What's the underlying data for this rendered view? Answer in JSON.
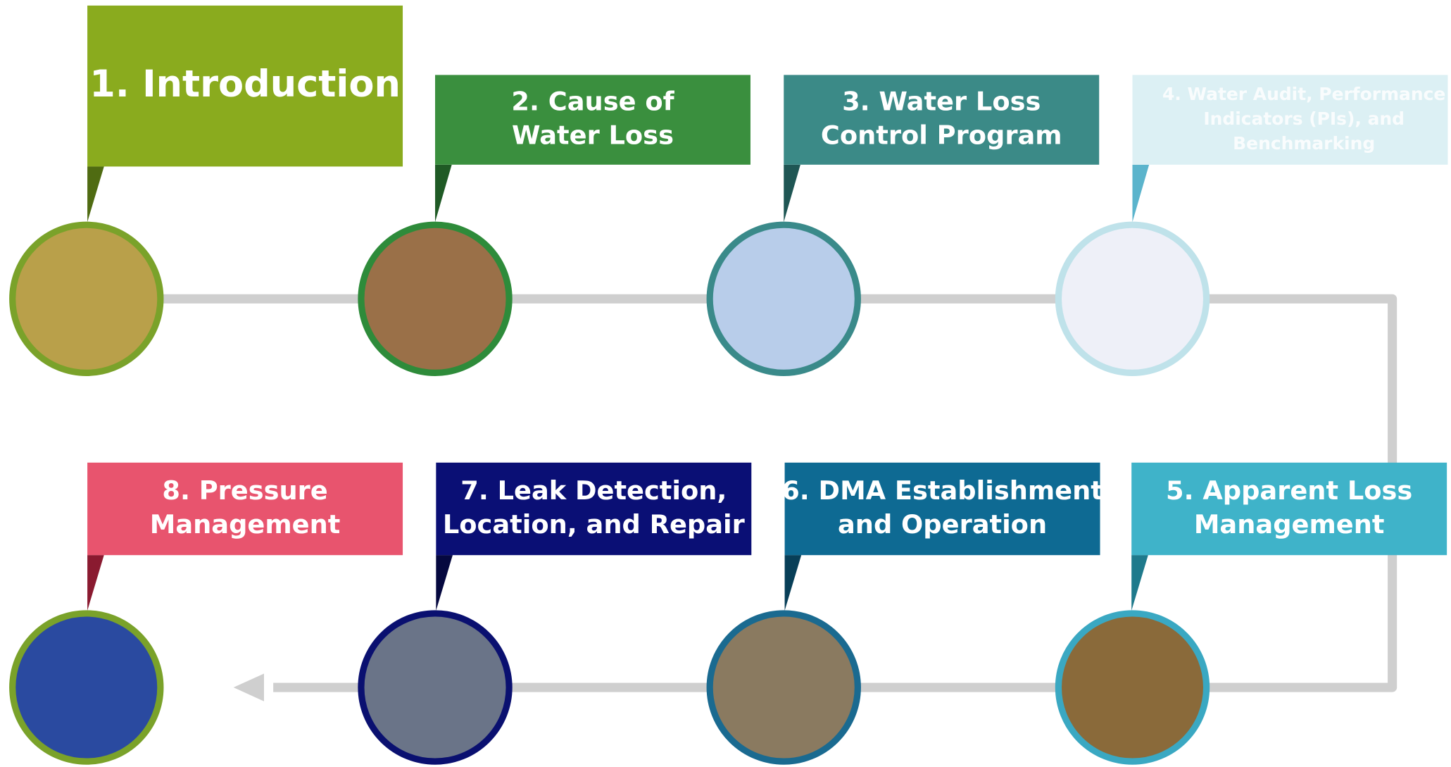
{
  "steps": [
    {
      "label": [
        "1. Introduction"
      ],
      "color": "#8aab1e",
      "pointer": "#4f6b12",
      "ring": "#7aa22a",
      "photo": "#b9a04a"
    },
    {
      "label": [
        "2. Cause of",
        "Water Loss"
      ],
      "color": "#3a8f3e",
      "pointer": "#1f5a25",
      "ring": "#2e8b3a",
      "photo": "#9a7048"
    },
    {
      "label": [
        "3. Water Loss",
        "Control Program"
      ],
      "color": "#3b8a87",
      "pointer": "#1f5654",
      "ring": "#3a8a8a",
      "photo": "#b8cdea"
    },
    {
      "label": [
        "4. Water Audit, Performance",
        "Indicators (PIs), and",
        "Benchmarking"
      ],
      "color": "#dcf0f4",
      "pointer": "#5bb4cc",
      "ring": "#bfe2ea",
      "photo": "#eef0f8",
      "faded": true
    },
    {
      "label": [
        "5. Apparent Loss",
        "Management"
      ],
      "color": "#3fb3c9",
      "pointer": "#1f7a8c",
      "ring": "#3aa8c2",
      "photo": "#8a6a3a"
    },
    {
      "label": [
        "6. DMA Establishment",
        "and Operation"
      ],
      "color": "#0e6a93",
      "pointer": "#083f58",
      "ring": "#1a6a90",
      "photo": "#8a7a60"
    },
    {
      "label": [
        "7. Leak Detection,",
        "Location, and Repair"
      ],
      "color": "#0a0f75",
      "pointer": "#05083f",
      "ring": "#0a1070",
      "photo": "#6a7488"
    },
    {
      "label": [
        "8. Pressure",
        "Management"
      ],
      "color": "#e8546e",
      "pointer": "#8a1a30",
      "ring": "#7aa22a",
      "photo": "#2a4aa0"
    }
  ]
}
